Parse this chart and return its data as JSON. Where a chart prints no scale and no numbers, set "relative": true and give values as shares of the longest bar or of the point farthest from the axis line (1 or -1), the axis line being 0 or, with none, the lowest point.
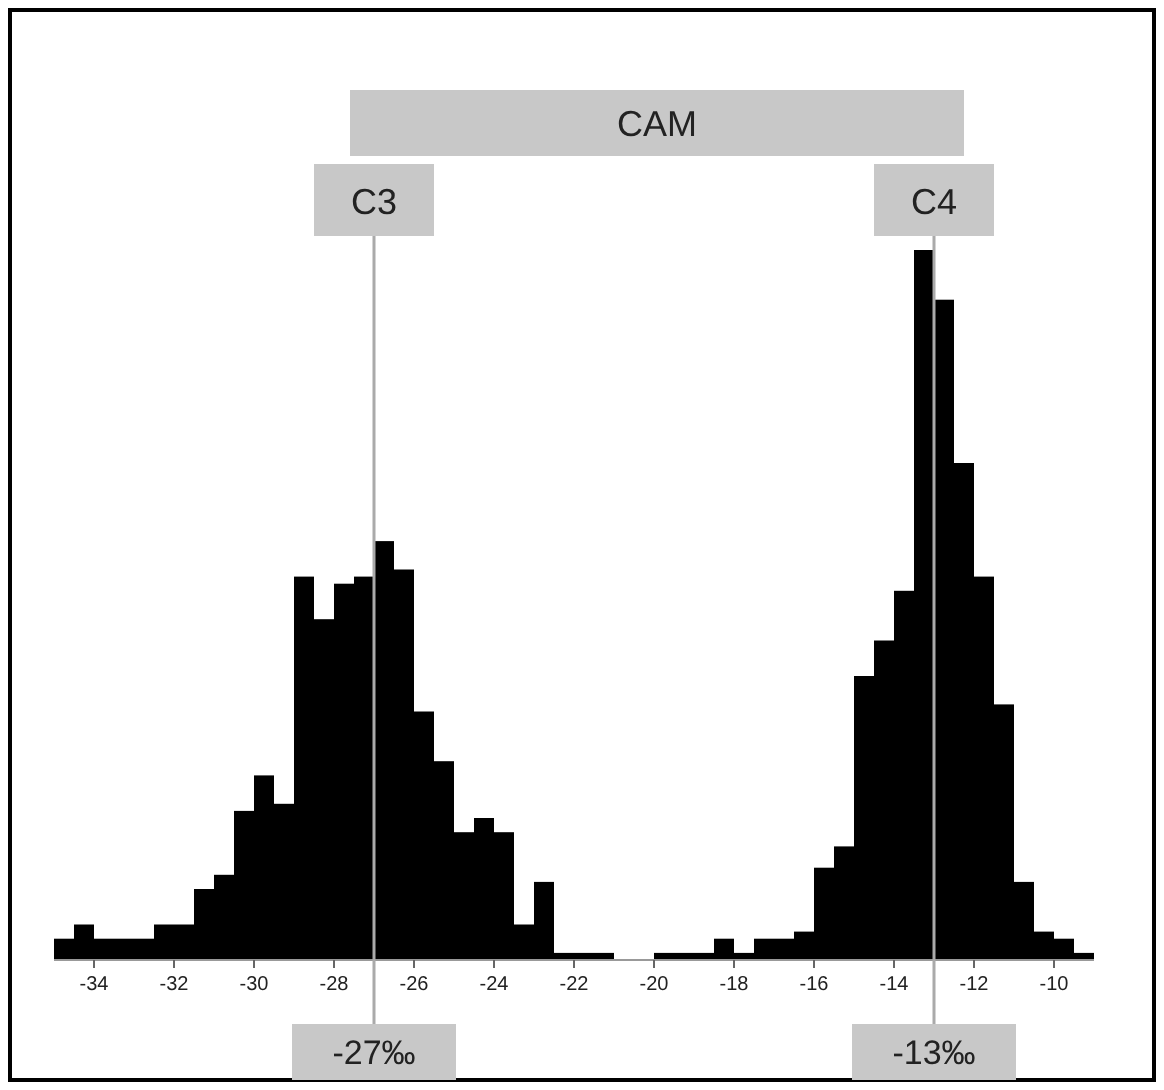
{
  "chart_data": {
    "type": "bar",
    "relative": true,
    "color": "#000000",
    "x": [
      -34.75,
      -34.25,
      -33.75,
      -33.25,
      -32.75,
      -32.25,
      -31.75,
      -31.25,
      -30.75,
      -30.25,
      -29.75,
      -29.25,
      -28.75,
      -28.25,
      -27.75,
      -27.25,
      -26.75,
      -26.25,
      -25.75,
      -25.25,
      -24.75,
      -24.25,
      -23.75,
      -23.25,
      -22.75,
      -22.25,
      -21.75,
      -21.25,
      -20.75,
      -20.25,
      -19.75,
      -19.25,
      -18.75,
      -18.25,
      -17.75,
      -17.25,
      -16.75,
      -16.25,
      -15.75,
      -15.25,
      -14.75,
      -14.25,
      -13.75,
      -13.25,
      -12.75,
      -12.25,
      -11.75,
      -11.25,
      -10.75,
      -10.25,
      -9.75,
      -9.25
    ],
    "values": [
      0.03,
      0.05,
      0.03,
      0.03,
      0.03,
      0.05,
      0.05,
      0.1,
      0.12,
      0.21,
      0.26,
      0.22,
      0.54,
      0.48,
      0.53,
      0.54,
      0.59,
      0.55,
      0.35,
      0.28,
      0.18,
      0.2,
      0.18,
      0.05,
      0.11,
      0.01,
      0.01,
      0.01,
      0,
      0,
      0.01,
      0.01,
      0.01,
      0.03,
      0.01,
      0.03,
      0.03,
      0.04,
      0.13,
      0.16,
      0.4,
      0.45,
      0.52,
      1,
      0.93,
      0.7,
      0.54,
      0.36,
      0.11,
      0.04,
      0.03,
      0.01
    ],
    "xlim": [
      -35,
      -9
    ],
    "xticks": [
      -34,
      -32,
      -30,
      -28,
      -26,
      -24,
      -22,
      -20,
      -18,
      -16,
      -14,
      -12,
      -10
    ],
    "ref_lines": [
      {
        "axis": "x",
        "value": -27,
        "label": "-27‰",
        "color": "#aaaaaa"
      },
      {
        "axis": "x",
        "value": -13,
        "label": "-13‰",
        "color": "#aaaaaa"
      }
    ],
    "annotations": [
      "CAM",
      "C3",
      "C4"
    ]
  }
}
